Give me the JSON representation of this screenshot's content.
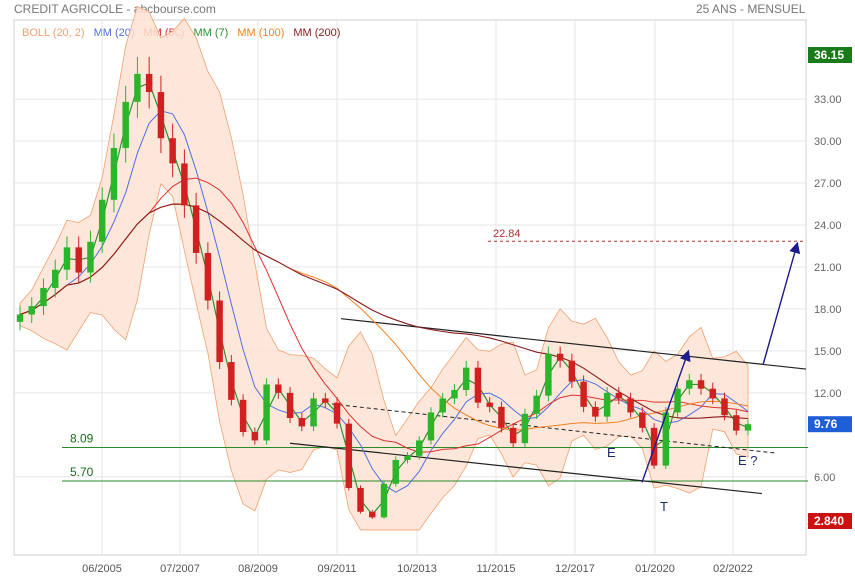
{
  "header": {
    "title": "CREDIT AGRICOLE - abcbourse.com",
    "period": "25 ANS - MENSUEL"
  },
  "legend": [
    {
      "label": "BOLL (20, 2)",
      "color": "#f2a070"
    },
    {
      "label": "MM (20)",
      "color": "#4f6fe0"
    },
    {
      "label": "MM (50)",
      "color": "#e03030"
    },
    {
      "label": "MM (7)",
      "color": "#2f8f2f"
    },
    {
      "label": "MM (100)",
      "color": "#f08020"
    },
    {
      "label": "MM (200)",
      "color": "#8a1a1a"
    }
  ],
  "colors": {
    "up_candle": "#2bb52b",
    "down_candle": "#d02020",
    "bollinger_fill": "#fde3d3",
    "price_label_bg": "#1e5fd8",
    "max_label_bg": "#1a7a1a",
    "min_label_bg": "#cc1111",
    "support_line": "#2a8a2a",
    "target_line": "#b03030",
    "arrow": "#1c1c8c"
  },
  "chart_data": {
    "type": "candlestick",
    "title": "CREDIT AGRICOLE - abcbourse.com",
    "x_tick_labels": [
      "06/2005",
      "07/2007",
      "08/2009",
      "09/2011",
      "10/2013",
      "11/2015",
      "12/2017",
      "01/2020",
      "02/2022"
    ],
    "y_tick_labels": [
      "33.00",
      "30.00",
      "27.00",
      "24.00",
      "21.00",
      "18.00",
      "15.00",
      "12.00",
      "6.00"
    ],
    "ylim": [
      2.0,
      37.0
    ],
    "grid": true,
    "last_price": "9.76",
    "max_label": "36.15",
    "min_label": "2.840",
    "levels": [
      {
        "label": "8.09",
        "value": 8.09
      },
      {
        "label": "5.70",
        "value": 5.7
      }
    ],
    "target": {
      "label": "22.84",
      "value": 22.84
    },
    "annotations": [
      "E",
      "T",
      "E ?"
    ],
    "close_series": [
      17.6,
      18.2,
      19.5,
      20.8,
      22.4,
      20.6,
      22.8,
      25.8,
      29.5,
      32.8,
      34.8,
      33.5,
      30.2,
      28.4,
      25.4,
      22.0,
      18.6,
      14.2,
      11.5,
      9.2,
      8.6,
      12.6,
      12.0,
      10.2,
      9.6,
      11.6,
      11.3,
      9.8,
      5.2,
      3.5,
      3.1,
      5.5,
      7.2,
      7.5,
      8.6,
      10.6,
      11.6,
      12.2,
      13.8,
      11.3,
      11.0,
      9.5,
      8.4,
      10.5,
      11.8,
      14.8,
      14.3,
      12.8,
      11.0,
      10.3,
      12.0,
      11.6,
      10.6,
      9.5,
      6.8,
      10.6,
      12.3,
      12.9,
      12.3,
      11.6,
      10.4,
      9.3,
      9.76
    ]
  }
}
